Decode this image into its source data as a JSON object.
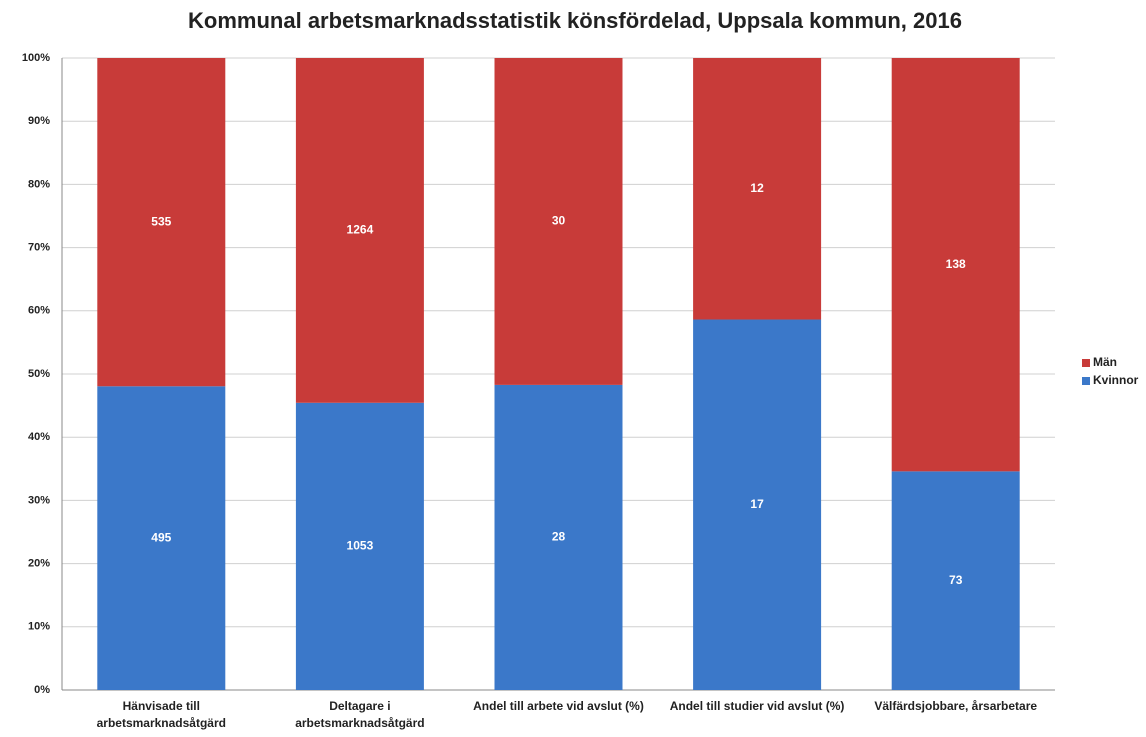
{
  "chart_data": {
    "type": "bar",
    "stacking": "percent",
    "title": "Kommunal arbetsmarknadsstatistik könsfördelad, Uppsala kommun, 2016",
    "categories": [
      "Hänvisade till arbetsmarknadsåtgärd",
      "Deltagare i arbetsmarknadsåtgärd",
      "Andel till arbete vid avslut (%)",
      "Andel till studier vid avslut (%)",
      "Välfärdsjobbare, årsarbetare"
    ],
    "series": [
      {
        "name": "Kvinnor",
        "color": "#3b78c9",
        "values": [
          495,
          1053,
          28,
          17,
          73
        ]
      },
      {
        "name": "Män",
        "color": "#c83b39",
        "values": [
          535,
          1264,
          30,
          12,
          138
        ]
      }
    ],
    "ylim": [
      0,
      100
    ],
    "yticks": [
      {
        "value": 0,
        "label": "0%"
      },
      {
        "value": 10,
        "label": "10%"
      },
      {
        "value": 20,
        "label": "20%"
      },
      {
        "value": 30,
        "label": "30%"
      },
      {
        "value": 40,
        "label": "40%"
      },
      {
        "value": 50,
        "label": "50%"
      },
      {
        "value": 60,
        "label": "60%"
      },
      {
        "value": 70,
        "label": "70%"
      },
      {
        "value": 80,
        "label": "80%"
      },
      {
        "value": 90,
        "label": "90%"
      },
      {
        "value": 100,
        "label": "100%"
      }
    ],
    "grid": true,
    "legend": "right"
  }
}
